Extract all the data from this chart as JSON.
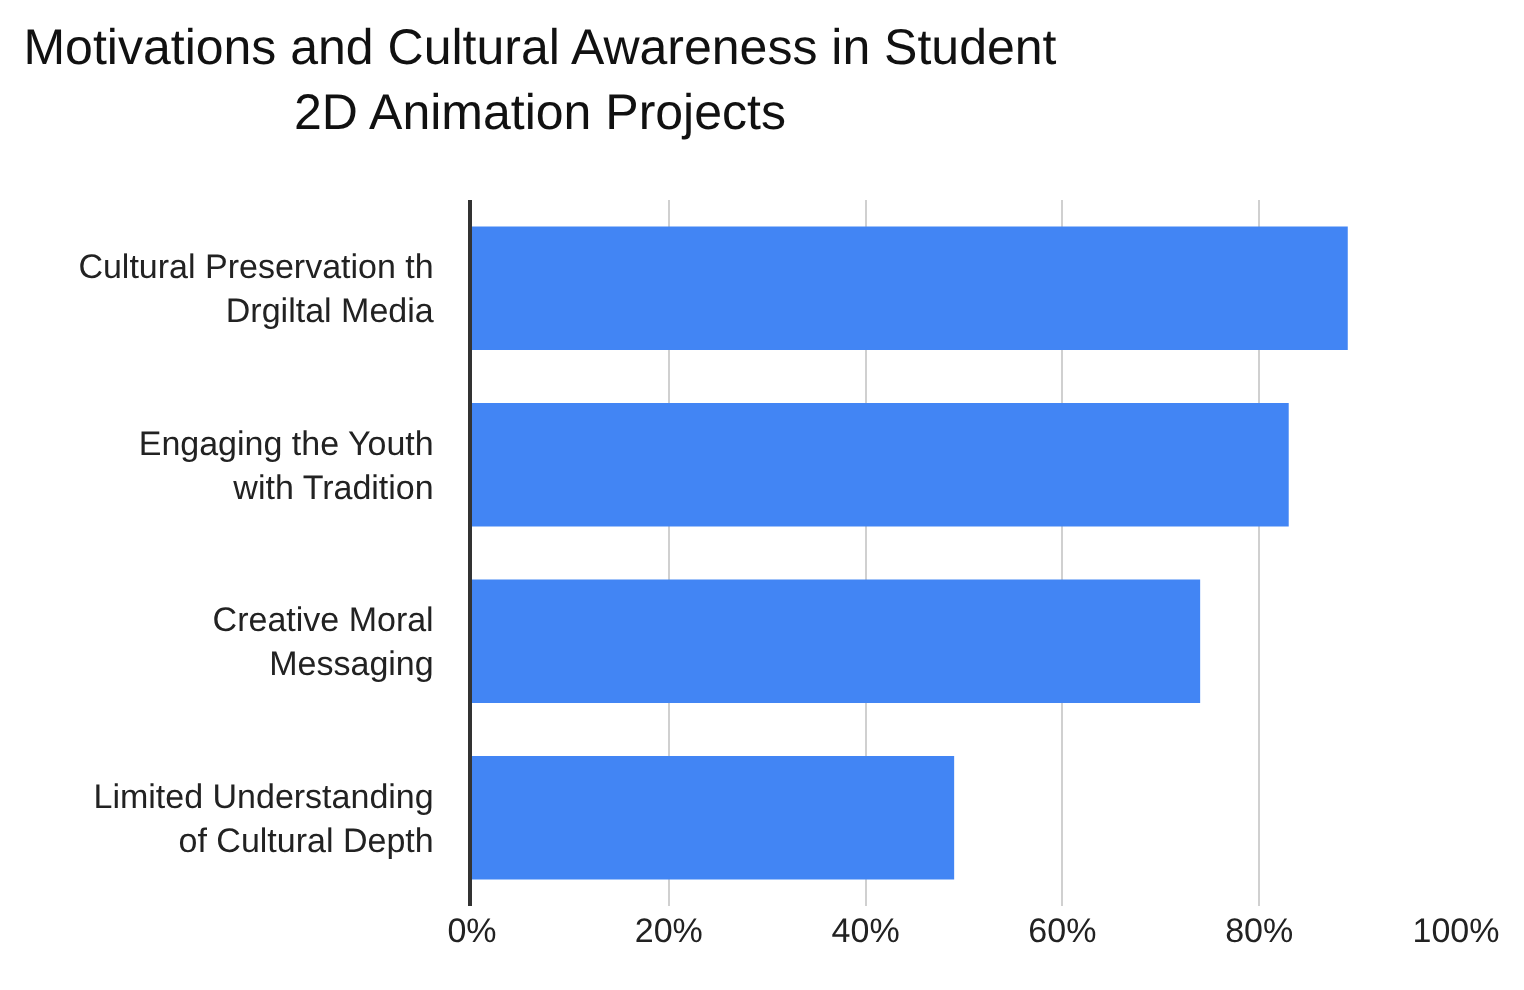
{
  "chart_data": {
    "type": "bar",
    "orientation": "horizontal",
    "title": "Motivations and Cultural Awareness in Student\n2D Animation Projects",
    "categories": [
      "Cultural Preservation th\nDrgiltal Media",
      "Engaging the Youth\nwith Tradition",
      "Creative Moral\nMessaging",
      "Limited Understanding\nof Cultural Depth"
    ],
    "values": [
      89,
      83,
      74,
      49
    ],
    "color": "#4285f4",
    "xlim": [
      0,
      100
    ],
    "xticks": [
      {
        "value": 0,
        "label": "0%"
      },
      {
        "value": 20,
        "label": "20%"
      },
      {
        "value": 40,
        "label": "40%"
      },
      {
        "value": 60,
        "label": "60%"
      },
      {
        "value": 80,
        "label": "80%"
      },
      {
        "value": 100,
        "label": "100%"
      }
    ],
    "grid": "x",
    "legend": false
  }
}
